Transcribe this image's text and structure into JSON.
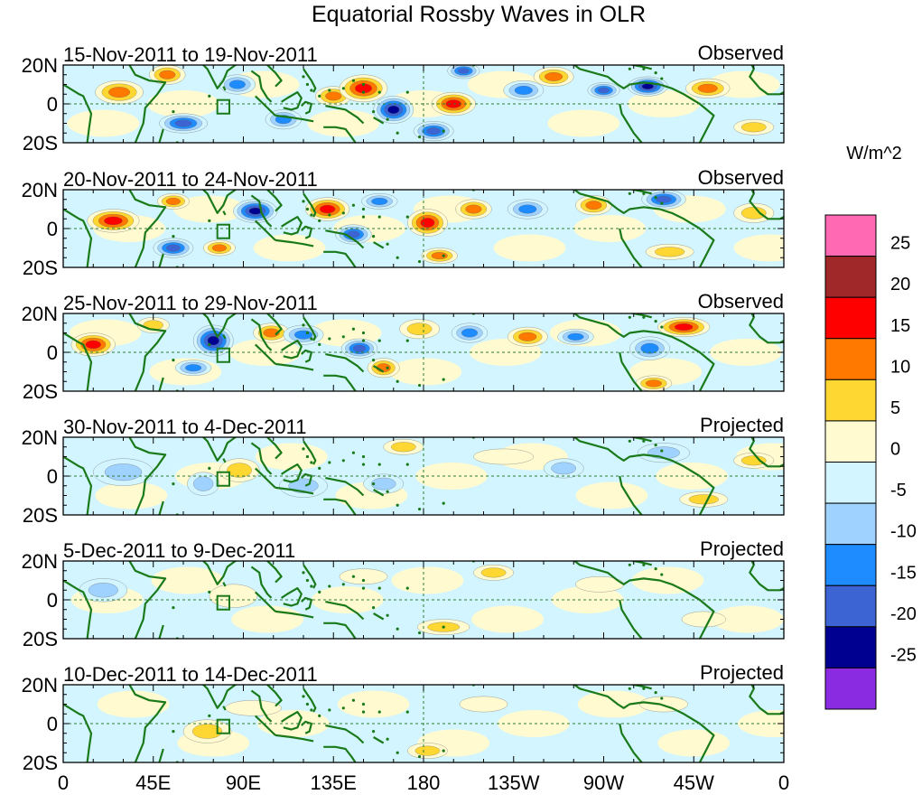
{
  "chart_data": {
    "type": "heatmap",
    "title": "Equatorial Rossby Waves in OLR",
    "units_label": "W/m^2",
    "x_ticks": [
      "0",
      "45E",
      "90E",
      "135E",
      "180",
      "135W",
      "90W",
      "45W",
      "0"
    ],
    "x_tick_values": [
      0,
      45,
      90,
      135,
      180,
      225,
      270,
      315,
      360
    ],
    "y_ticks": [
      "20N",
      "0",
      "20S"
    ],
    "y_tick_values": [
      20,
      0,
      -20
    ],
    "xlim": [
      0,
      360
    ],
    "ylim": [
      -20,
      20
    ],
    "reference_lines": {
      "equator_lat": 0,
      "dateline_lon": 180
    },
    "box_region": {
      "lon": [
        77,
        83
      ],
      "lat": [
        -5,
        2
      ]
    },
    "colorbar": {
      "levels": [
        -25,
        -20,
        -15,
        -10,
        -5,
        0,
        5,
        10,
        15,
        20,
        25
      ],
      "labels": [
        "25",
        "20",
        "15",
        "10",
        "5",
        "0",
        "-5",
        "-10",
        "-15",
        "-20",
        "-25"
      ],
      "colors": [
        "#8a2be2",
        "#000090",
        "#3c64d2",
        "#1e8cff",
        "#a0d2ff",
        "#d2f5ff",
        "#fffad0",
        "#ffd732",
        "#ff7800",
        "#ff0000",
        "#a02828",
        "#ff69b4"
      ]
    },
    "land_color": "#1a7a1a",
    "panels": [
      {
        "dates": "15-Nov-2011 to 19-Nov-2011",
        "label": "Observed",
        "anomalies": [
          {
            "lon": 28,
            "lat": 6,
            "v": 15,
            "w": 12,
            "h": 6
          },
          {
            "lon": 52,
            "lat": 15,
            "v": 14,
            "w": 9,
            "h": 5
          },
          {
            "lon": 60,
            "lat": -10,
            "v": -20,
            "w": 12,
            "h": 5
          },
          {
            "lon": 87,
            "lat": 10,
            "v": -12,
            "w": 9,
            "h": 5
          },
          {
            "lon": 110,
            "lat": -8,
            "v": -14,
            "w": 9,
            "h": 5
          },
          {
            "lon": 135,
            "lat": 4,
            "v": 12,
            "w": 9,
            "h": 5
          },
          {
            "lon": 150,
            "lat": 8,
            "v": 18,
            "w": 12,
            "h": 7
          },
          {
            "lon": 165,
            "lat": -3,
            "v": -22,
            "w": 10,
            "h": 7
          },
          {
            "lon": 185,
            "lat": -14,
            "v": -20,
            "w": 10,
            "h": 5
          },
          {
            "lon": 195,
            "lat": 0,
            "v": 18,
            "w": 11,
            "h": 6
          },
          {
            "lon": 200,
            "lat": 17,
            "v": -18,
            "w": 8,
            "h": 4
          },
          {
            "lon": 230,
            "lat": 7,
            "v": -15,
            "w": 10,
            "h": 5
          },
          {
            "lon": 245,
            "lat": 14,
            "v": 13,
            "w": 10,
            "h": 5
          },
          {
            "lon": 270,
            "lat": 7,
            "v": -18,
            "w": 8,
            "h": 4
          },
          {
            "lon": 292,
            "lat": 9,
            "v": -24,
            "w": 10,
            "h": 5
          },
          {
            "lon": 322,
            "lat": 8,
            "v": 12,
            "w": 11,
            "h": 5
          },
          {
            "lon": 345,
            "lat": -12,
            "v": 6,
            "w": 10,
            "h": 4
          }
        ]
      },
      {
        "dates": "20-Nov-2011 to 24-Nov-2011",
        "label": "Observed",
        "anomalies": [
          {
            "lon": 25,
            "lat": 4,
            "v": 17,
            "w": 13,
            "h": 6
          },
          {
            "lon": 55,
            "lat": 14,
            "v": 13,
            "w": 8,
            "h": 4
          },
          {
            "lon": 55,
            "lat": -10,
            "v": -18,
            "w": 10,
            "h": 5
          },
          {
            "lon": 78,
            "lat": -10,
            "v": 12,
            "w": 8,
            "h": 4
          },
          {
            "lon": 96,
            "lat": 9,
            "v": -24,
            "w": 11,
            "h": 6
          },
          {
            "lon": 132,
            "lat": 10,
            "v": 16,
            "w": 11,
            "h": 6
          },
          {
            "lon": 145,
            "lat": -3,
            "v": -20,
            "w": 9,
            "h": 5
          },
          {
            "lon": 158,
            "lat": 14,
            "v": -12,
            "w": 9,
            "h": 4
          },
          {
            "lon": 182,
            "lat": 3,
            "v": 16,
            "w": 10,
            "h": 7
          },
          {
            "lon": 188,
            "lat": -14,
            "v": 12,
            "w": 9,
            "h": 4
          },
          {
            "lon": 205,
            "lat": 10,
            "v": 13,
            "w": 9,
            "h": 5
          },
          {
            "lon": 232,
            "lat": 10,
            "v": -15,
            "w": 10,
            "h": 5
          },
          {
            "lon": 265,
            "lat": 12,
            "v": 14,
            "w": 9,
            "h": 5
          },
          {
            "lon": 300,
            "lat": 15,
            "v": -20,
            "w": 11,
            "h": 5
          },
          {
            "lon": 303,
            "lat": -12,
            "v": 6,
            "w": 12,
            "h": 4
          },
          {
            "lon": 345,
            "lat": 8,
            "v": 7,
            "w": 10,
            "h": 5
          }
        ]
      },
      {
        "dates": "25-Nov-2011 to 29-Nov-2011",
        "label": "Observed",
        "anomalies": [
          {
            "lon": 15,
            "lat": 4,
            "v": 18,
            "w": 11,
            "h": 6
          },
          {
            "lon": 45,
            "lat": 14,
            "v": 10,
            "w": 8,
            "h": 4
          },
          {
            "lon": 65,
            "lat": -8,
            "v": -12,
            "w": 9,
            "h": 4
          },
          {
            "lon": 75,
            "lat": 6,
            "v": -24,
            "w": 10,
            "h": 8
          },
          {
            "lon": 104,
            "lat": 10,
            "v": 14,
            "w": 9,
            "h": 5
          },
          {
            "lon": 120,
            "lat": 9,
            "v": -15,
            "w": 10,
            "h": 5
          },
          {
            "lon": 148,
            "lat": 2,
            "v": -16,
            "w": 9,
            "h": 5
          },
          {
            "lon": 160,
            "lat": -8,
            "v": 15,
            "w": 8,
            "h": 5
          },
          {
            "lon": 178,
            "lat": 12,
            "v": 9,
            "w": 10,
            "h": 5
          },
          {
            "lon": 203,
            "lat": 10,
            "v": -14,
            "w": 9,
            "h": 5
          },
          {
            "lon": 232,
            "lat": 8,
            "v": 15,
            "w": 10,
            "h": 5
          },
          {
            "lon": 256,
            "lat": 8,
            "v": -14,
            "w": 9,
            "h": 4
          },
          {
            "lon": 293,
            "lat": 2,
            "v": -15,
            "w": 10,
            "h": 6
          },
          {
            "lon": 310,
            "lat": 13,
            "v": 16,
            "w": 13,
            "h": 5
          },
          {
            "lon": 295,
            "lat": -16,
            "v": 14,
            "w": 9,
            "h": 4
          }
        ]
      },
      {
        "dates": "30-Nov-2011 to 4-Dec-2011",
        "label": "Projected",
        "anomalies": [
          {
            "lon": 30,
            "lat": 2,
            "v": -8,
            "w": 15,
            "h": 7
          },
          {
            "lon": 70,
            "lat": -4,
            "v": -7,
            "w": 8,
            "h": 6
          },
          {
            "lon": 88,
            "lat": 3,
            "v": 7,
            "w": 10,
            "h": 6
          },
          {
            "lon": 120,
            "lat": -5,
            "v": -8,
            "w": 12,
            "h": 6
          },
          {
            "lon": 160,
            "lat": -4,
            "v": -6,
            "w": 10,
            "h": 5
          },
          {
            "lon": 170,
            "lat": 15,
            "v": 6,
            "w": 10,
            "h": 4
          },
          {
            "lon": 220,
            "lat": 10,
            "v": 5,
            "w": 15,
            "h": 4
          },
          {
            "lon": 250,
            "lat": 4,
            "v": -6,
            "w": 10,
            "h": 5
          },
          {
            "lon": 300,
            "lat": 12,
            "v": -8,
            "w": 13,
            "h": 5
          },
          {
            "lon": 320,
            "lat": -12,
            "v": 6,
            "w": 12,
            "h": 4
          },
          {
            "lon": 345,
            "lat": 8,
            "v": 6,
            "w": 10,
            "h": 4
          }
        ]
      },
      {
        "dates": "5-Dec-2011 to 9-Dec-2011",
        "label": "Projected",
        "anomalies": [
          {
            "lon": 20,
            "lat": 5,
            "v": -6,
            "w": 12,
            "h": 6
          },
          {
            "lon": 85,
            "lat": 2,
            "v": 5,
            "w": 12,
            "h": 6
          },
          {
            "lon": 150,
            "lat": 12,
            "v": 5,
            "w": 12,
            "h": 4
          },
          {
            "lon": 190,
            "lat": -14,
            "v": 7,
            "w": 13,
            "h": 4
          },
          {
            "lon": 215,
            "lat": 14,
            "v": 6,
            "w": 10,
            "h": 4
          },
          {
            "lon": 268,
            "lat": 8,
            "v": 5,
            "w": 12,
            "h": 4
          },
          {
            "lon": 320,
            "lat": -10,
            "v": 5,
            "w": 11,
            "h": 4
          }
        ]
      },
      {
        "dates": "10-Dec-2011 to 14-Dec-2011",
        "label": "Projected",
        "anomalies": [
          {
            "lon": 72,
            "lat": -4,
            "v": 6,
            "w": 12,
            "h": 6
          },
          {
            "lon": 95,
            "lat": 8,
            "v": 5,
            "w": 14,
            "h": 4
          },
          {
            "lon": 182,
            "lat": -14,
            "v": 7,
            "w": 10,
            "h": 4
          },
          {
            "lon": 210,
            "lat": 10,
            "v": 5,
            "w": 12,
            "h": 4
          },
          {
            "lon": 300,
            "lat": 10,
            "v": 4,
            "w": 12,
            "h": 4
          }
        ]
      }
    ]
  }
}
